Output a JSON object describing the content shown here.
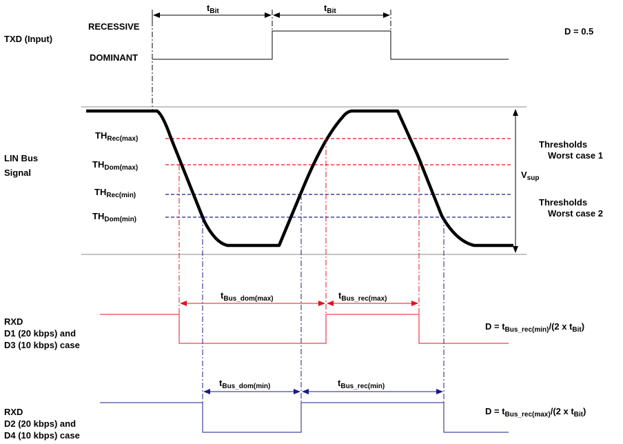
{
  "txd": {
    "label": "TXD (Input)",
    "recessive": "RECESSIVE",
    "dominant": "DOMINANT",
    "duty": "D = 0.5",
    "tbit_main": "t",
    "tbit_sub": "Bit"
  },
  "lin": {
    "label_line1": "LIN Bus",
    "label_line2": "Signal",
    "vsup_main": "V",
    "vsup_sub": "sup",
    "th_rec_max_main": "TH",
    "th_rec_max_sub": "Rec(max)",
    "th_dom_max_main": "TH",
    "th_dom_max_sub": "Dom(max)",
    "th_rec_min_main": "TH",
    "th_rec_min_sub": "Rec(min)",
    "th_dom_min_main": "TH",
    "th_dom_min_sub": "Dom(min)",
    "wc1_line1": "Thresholds",
    "wc1_line2": "Worst case 1",
    "wc2_line1": "Thresholds",
    "wc2_line2": "Worst case 2"
  },
  "rxd1": {
    "label_line1": "RXD",
    "label_line2": "D1 (20 kbps) and",
    "label_line3": "D3 (10 kbps) case",
    "t_dom_main": "t",
    "t_dom_sub": "Bus_dom(max)",
    "t_rec_main": "t",
    "t_rec_sub": "Bus_rec(max)",
    "formula_a": "D = t",
    "formula_b": "Bus_rec(min)",
    "formula_c": "/(2 x t",
    "formula_d": "Bit",
    "formula_e": ")"
  },
  "rxd2": {
    "label_line1": "RXD",
    "label_line2": "D2 (20 kbps) and",
    "label_line3": "D4 (10 kbps) case",
    "t_dom_main": "t",
    "t_dom_sub": "Bus_dom(min)",
    "t_rec_main": "t",
    "t_rec_sub": "Bus_rec(min)",
    "formula_a": "D = t",
    "formula_b": "Bus_rec(max)",
    "formula_c": "/(2 x t",
    "formula_d": "Bit",
    "formula_e": ")"
  },
  "colors": {
    "red": "#e8101a",
    "blue": "#1a1a8c",
    "black": "#000000",
    "gray": "#888888"
  }
}
